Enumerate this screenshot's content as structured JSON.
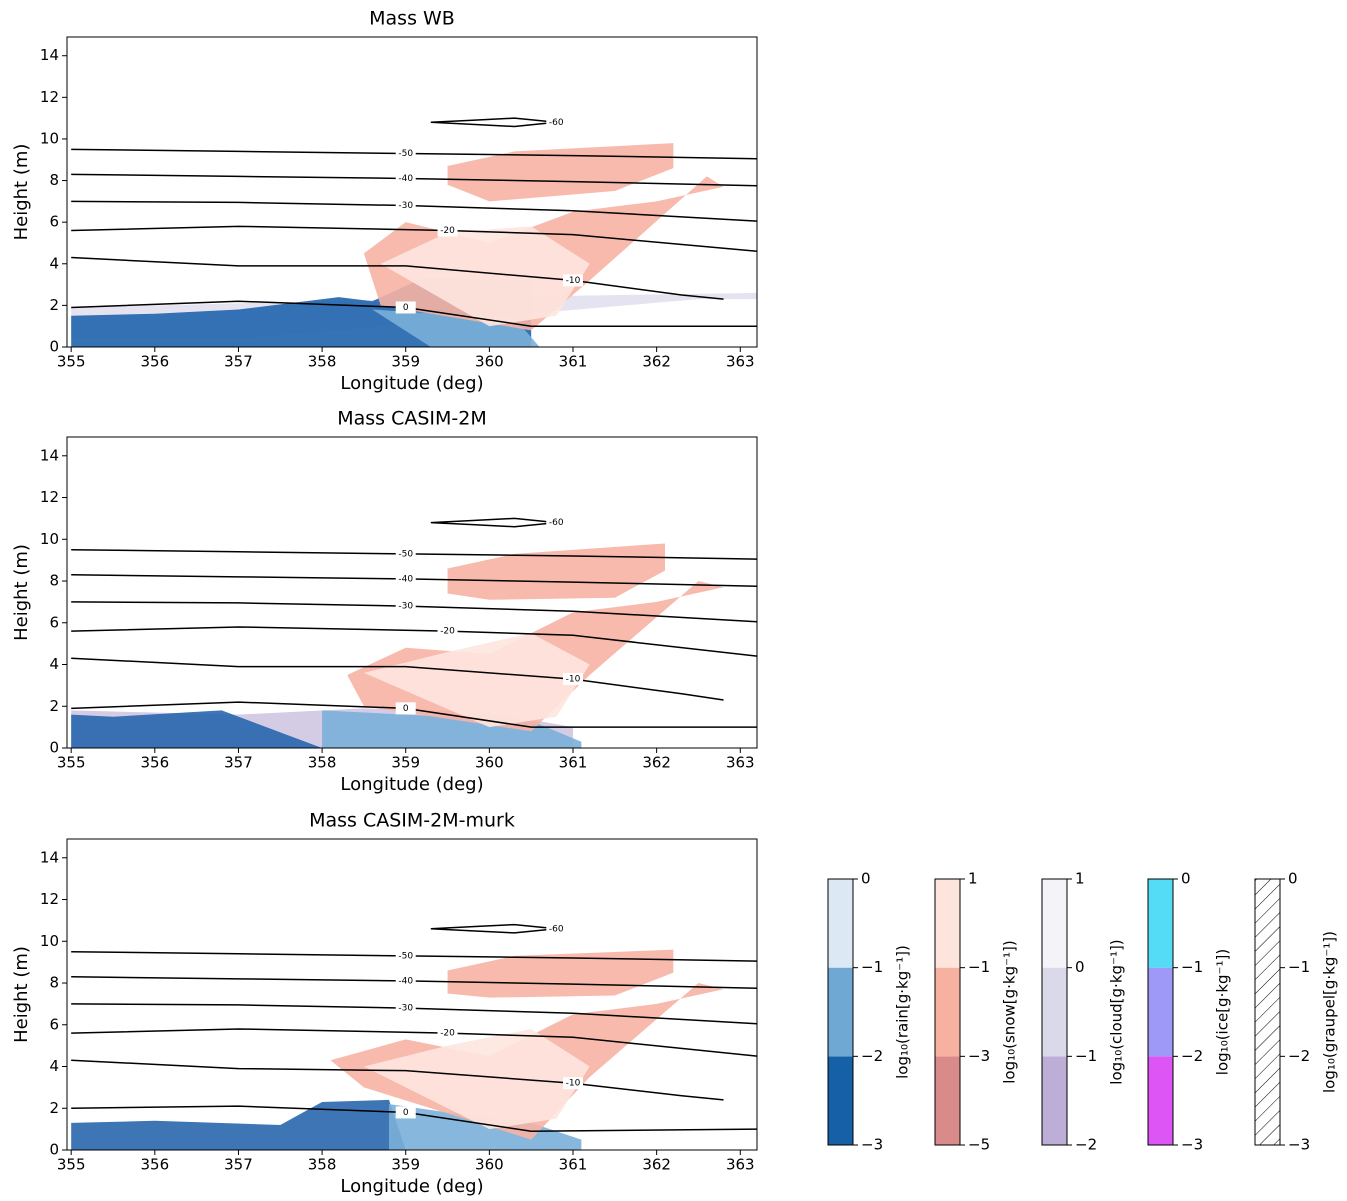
{
  "chart_data": [
    {
      "type": "contour",
      "title": "Mass WB",
      "xlabel": "Longitude (deg)",
      "ylabel": "Height (m)",
      "xlim": [
        354.95,
        363.2
      ],
      "ylim": [
        0,
        14.9
      ],
      "xticks": [
        355,
        356,
        357,
        358,
        359,
        360,
        361,
        362,
        363
      ],
      "yticks": [
        0,
        2,
        4,
        6,
        8,
        10,
        12,
        14
      ],
      "shades": [
        {
          "color": "#e3e0ee",
          "x": [
            355,
            358,
            360,
            363.2,
            363.2,
            362.5,
            357,
            355
          ],
          "y": [
            1.9,
            2.2,
            2.4,
            2.6,
            2.3,
            2.3,
            0.4,
            0.4
          ]
        },
        {
          "color": "#1f64ad",
          "x": [
            355,
            356,
            357,
            358.2,
            358.6,
            359.2,
            360.5,
            360.5,
            355
          ],
          "y": [
            1.5,
            1.6,
            1.8,
            2.4,
            2.2,
            3.3,
            3.2,
            0,
            0
          ]
        },
        {
          "color": "#7aafd8",
          "x": [
            358.6,
            359.4,
            360.3,
            360.6,
            359.3
          ],
          "y": [
            1.8,
            1.6,
            1.4,
            0,
            0
          ]
        },
        {
          "color": "#f6b3a3",
          "x": [
            358.5,
            359,
            360,
            361,
            362,
            362.8,
            362.6,
            361.2,
            360.5,
            358.7
          ],
          "y": [
            4.5,
            6,
            5,
            6.5,
            7,
            7.7,
            8.2,
            3.2,
            0.8,
            2
          ]
        },
        {
          "color": "#fde6df",
          "x": [
            358.7,
            359.5,
            360.5,
            361.2,
            360.8,
            360
          ],
          "y": [
            4,
            5.5,
            5.8,
            4,
            1.5,
            1
          ]
        },
        {
          "color": "#f6b3a3",
          "x": [
            359.5,
            360.3,
            362.2,
            362.2,
            361.5,
            360,
            359.5
          ],
          "y": [
            8.7,
            9.4,
            9.8,
            8.6,
            7.5,
            7.0,
            7.8
          ]
        }
      ],
      "contours": [
        {
          "level": -60,
          "x": [
            359.3,
            359.8,
            360.3,
            360.8,
            360.3,
            359.8,
            359.3
          ],
          "y": [
            10.8,
            10.9,
            11.0,
            10.8,
            10.6,
            10.7,
            10.8
          ]
        },
        {
          "level": -50,
          "x": [
            355,
            357,
            359,
            361,
            363.2
          ],
          "y": [
            9.5,
            9.4,
            9.3,
            9.2,
            9.05
          ]
        },
        {
          "level": -40,
          "x": [
            355,
            357,
            359,
            361,
            363.2
          ],
          "y": [
            8.3,
            8.2,
            8.1,
            7.95,
            7.75
          ]
        },
        {
          "level": -30,
          "x": [
            355,
            357,
            359,
            361,
            363.2
          ],
          "y": [
            7.0,
            6.95,
            6.8,
            6.55,
            6.05
          ]
        },
        {
          "level": -20,
          "x": [
            355,
            357,
            359.5,
            361,
            363.2
          ],
          "y": [
            5.6,
            5.8,
            5.6,
            5.4,
            4.6
          ]
        },
        {
          "level": -10,
          "x": [
            355,
            357,
            359,
            361,
            362.3,
            362.8
          ],
          "y": [
            4.3,
            3.9,
            3.9,
            3.2,
            2.5,
            2.3
          ]
        },
        {
          "level": 0,
          "x": [
            355,
            357,
            359,
            360.5,
            363.2
          ],
          "y": [
            1.9,
            2.2,
            1.9,
            1.0,
            1.0
          ]
        }
      ]
    },
    {
      "type": "contour",
      "title": "Mass CASIM-2M",
      "xlabel": "Longitude (deg)",
      "ylabel": "Height (m)",
      "xlim": [
        354.95,
        363.2
      ],
      "ylim": [
        0,
        14.9
      ],
      "xticks": [
        355,
        356,
        357,
        358,
        359,
        360,
        361,
        362,
        363
      ],
      "yticks": [
        0,
        2,
        4,
        6,
        8,
        10,
        12,
        14
      ],
      "shades": [
        {
          "color": "#cfc6e2",
          "x": [
            355,
            357,
            358.5,
            360,
            361,
            361,
            355
          ],
          "y": [
            1.8,
            1.6,
            1.9,
            1.7,
            1.0,
            0,
            0
          ]
        },
        {
          "color": "#2866ad",
          "x": [
            355,
            355.5,
            356.8,
            357.6,
            358,
            355
          ],
          "y": [
            1.6,
            1.5,
            1.8,
            0.6,
            0,
            0
          ]
        },
        {
          "color": "#7aafd8",
          "x": [
            358,
            359,
            360.5,
            361.1,
            361.1,
            358
          ],
          "y": [
            1.8,
            1.6,
            1.3,
            0.3,
            0,
            0
          ]
        },
        {
          "color": "#f6b3a3",
          "x": [
            358.3,
            359,
            360,
            361,
            362,
            362.8,
            362.5,
            361.2,
            360.5,
            358.5
          ],
          "y": [
            3.5,
            4.8,
            4.5,
            6.5,
            7,
            7.7,
            8.0,
            3.5,
            0.8,
            2
          ]
        },
        {
          "color": "#fde6df",
          "x": [
            358.5,
            359.5,
            360.5,
            361.2,
            360.8,
            360
          ],
          "y": [
            3.6,
            4.6,
            5.5,
            4,
            1.5,
            1
          ]
        },
        {
          "color": "#f6b3a3",
          "x": [
            359.5,
            360.3,
            362.1,
            362.1,
            361.5,
            360,
            359.5
          ],
          "y": [
            8.6,
            9.3,
            9.8,
            8.5,
            7.2,
            7.1,
            7.4
          ]
        }
      ],
      "contours": [
        {
          "level": -60,
          "x": [
            359.3,
            359.8,
            360.3,
            360.8,
            360.3,
            359.8,
            359.3
          ],
          "y": [
            10.8,
            10.9,
            11.0,
            10.8,
            10.6,
            10.7,
            10.8
          ]
        },
        {
          "level": -50,
          "x": [
            355,
            357,
            359,
            361,
            363.2
          ],
          "y": [
            9.5,
            9.4,
            9.3,
            9.2,
            9.05
          ]
        },
        {
          "level": -40,
          "x": [
            355,
            357,
            359,
            361,
            363.2
          ],
          "y": [
            8.3,
            8.2,
            8.1,
            7.95,
            7.75
          ]
        },
        {
          "level": -30,
          "x": [
            355,
            357,
            359,
            361,
            363.2
          ],
          "y": [
            7.0,
            6.95,
            6.8,
            6.55,
            6.05
          ]
        },
        {
          "level": -20,
          "x": [
            355,
            357,
            359.5,
            361,
            363.2
          ],
          "y": [
            5.6,
            5.8,
            5.6,
            5.4,
            4.4
          ]
        },
        {
          "level": -10,
          "x": [
            355,
            357,
            359,
            361,
            362.3,
            362.8
          ],
          "y": [
            4.3,
            3.9,
            3.9,
            3.3,
            2.6,
            2.3
          ]
        },
        {
          "level": 0,
          "x": [
            355,
            357,
            359,
            360.5,
            363.2
          ],
          "y": [
            1.9,
            2.2,
            1.9,
            1.0,
            1.0
          ]
        }
      ]
    },
    {
      "type": "contour",
      "title": "Mass CASIM-2M-murk",
      "xlabel": "Longitude (deg)",
      "ylabel": "Height (m)",
      "xlim": [
        354.95,
        363.2
      ],
      "ylim": [
        0,
        14.9
      ],
      "xticks": [
        355,
        356,
        357,
        358,
        359,
        360,
        361,
        362,
        363
      ],
      "yticks": [
        0,
        2,
        4,
        6,
        8,
        10,
        12,
        14
      ],
      "shades": [
        {
          "color": "#2866ad",
          "x": [
            355,
            356,
            357.5,
            358,
            358.8,
            359,
            355
          ],
          "y": [
            1.3,
            1.4,
            1.2,
            2.3,
            2.4,
            0,
            0
          ]
        },
        {
          "color": "#7aafd8",
          "x": [
            358.8,
            359.5,
            360.5,
            361.1,
            361.1,
            358.8
          ],
          "y": [
            2.2,
            1.8,
            1.3,
            0.5,
            0,
            0
          ]
        },
        {
          "color": "#f6b3a3",
          "x": [
            358.1,
            359,
            360,
            361,
            362,
            362.8,
            362.5,
            361.2,
            360.5,
            358.5
          ],
          "y": [
            4.3,
            5.3,
            4.5,
            6.5,
            7,
            7.7,
            8.0,
            3.5,
            0.5,
            3
          ]
        },
        {
          "color": "#fde6df",
          "x": [
            358.5,
            359.5,
            360.5,
            361.2,
            360.8,
            360
          ],
          "y": [
            4,
            5,
            5.8,
            4,
            1.5,
            1
          ]
        },
        {
          "color": "#f6b3a3",
          "x": [
            359.5,
            360.3,
            362.2,
            362.2,
            361.5,
            360,
            359.5
          ],
          "y": [
            8.6,
            9.3,
            9.6,
            8.5,
            7.4,
            7.3,
            7.5
          ]
        }
      ],
      "contours": [
        {
          "level": -60,
          "x": [
            359.3,
            359.8,
            360.3,
            360.8,
            360.3,
            359.8,
            359.3
          ],
          "y": [
            10.6,
            10.7,
            10.8,
            10.6,
            10.4,
            10.5,
            10.6
          ]
        },
        {
          "level": -50,
          "x": [
            355,
            357,
            359,
            361,
            363.2
          ],
          "y": [
            9.5,
            9.4,
            9.3,
            9.2,
            9.05
          ]
        },
        {
          "level": -40,
          "x": [
            355,
            357,
            359,
            361,
            363.2
          ],
          "y": [
            8.3,
            8.2,
            8.1,
            7.95,
            7.75
          ]
        },
        {
          "level": -30,
          "x": [
            355,
            357,
            359,
            361,
            363.2
          ],
          "y": [
            7.0,
            6.95,
            6.8,
            6.55,
            6.05
          ]
        },
        {
          "level": -20,
          "x": [
            355,
            357,
            359.5,
            361,
            363.2
          ],
          "y": [
            5.6,
            5.8,
            5.6,
            5.4,
            4.5
          ]
        },
        {
          "level": -10,
          "x": [
            355,
            357,
            359,
            361,
            362.3,
            362.8
          ],
          "y": [
            4.3,
            3.9,
            3.8,
            3.2,
            2.6,
            2.4
          ]
        },
        {
          "level": 0,
          "x": [
            355,
            357,
            359,
            360.5,
            363.2
          ],
          "y": [
            2.0,
            2.1,
            1.8,
            0.9,
            1.0
          ]
        }
      ]
    }
  ],
  "colorbars": [
    {
      "label": "log₁₀(rain[g·kg⁻¹])",
      "lim": [
        -3,
        0
      ],
      "ticks": [
        {
          "value": -3,
          "label": "−3"
        },
        {
          "value": -2,
          "label": "−2"
        },
        {
          "value": -1,
          "label": "−1"
        },
        0
      ],
      "colors": [
        "#1660a8",
        "#6fa8d3",
        "#dce9f4"
      ]
    },
    {
      "label": "log₁₀(snow[g·kg⁻¹])",
      "lim": [
        -5,
        1
      ],
      "ticks": [
        {
          "value": -5,
          "label": "−5"
        },
        {
          "value": -3,
          "label": "−3"
        },
        {
          "value": -1,
          "label": "−1"
        },
        1
      ],
      "colors": [
        "#d98b8a",
        "#f6b1a0",
        "#fde5de"
      ]
    },
    {
      "label": "log₁₀(cloud[g·kg⁻¹])",
      "lim": [
        -2,
        1
      ],
      "ticks": [
        {
          "value": -2,
          "label": "−2"
        },
        {
          "value": -1,
          "label": "−1"
        },
        0,
        1
      ],
      "colors": [
        "#bcaed6",
        "#dad9ea",
        "#f4f4f8"
      ]
    },
    {
      "label": "log₁₀(ice[g·kg⁻¹])",
      "lim": [
        -3,
        0
      ],
      "ticks": [
        {
          "value": -3,
          "label": "−3"
        },
        {
          "value": -2,
          "label": "−2"
        },
        {
          "value": -1,
          "label": "−1"
        },
        0
      ],
      "colors": [
        "#dd55f5",
        "#9e99f7",
        "#54dcf7"
      ]
    },
    {
      "label": "log₁₀(graupel[g·kg⁻¹])",
      "lim": [
        -3,
        0
      ],
      "ticks": [
        {
          "value": -3,
          "label": "−3"
        },
        {
          "value": -2,
          "label": "−2"
        },
        {
          "value": -1,
          "label": "−1"
        },
        0
      ],
      "colors": [
        "#ffffff",
        "#ffffff",
        "#ffffff"
      ],
      "hatch": true
    }
  ]
}
